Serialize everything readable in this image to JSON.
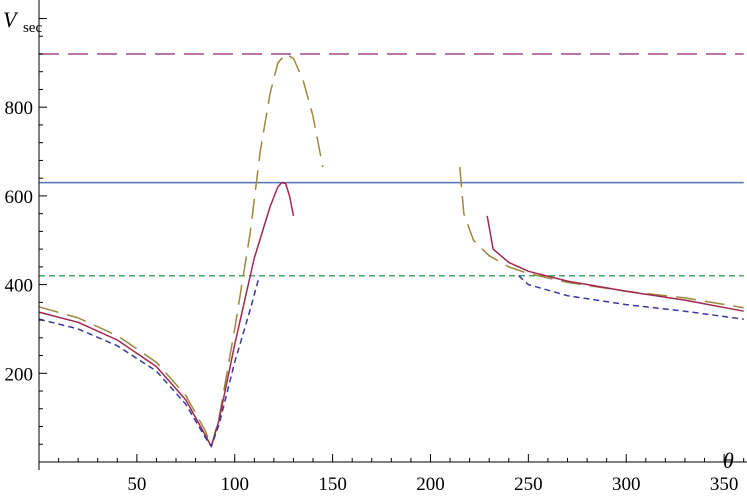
{
  "chart_data": {
    "type": "line",
    "xlabel": "θ",
    "ylabel": {
      "main": "V",
      "sub": "sec"
    },
    "xlim": [
      0,
      362
    ],
    "ylim": [
      0,
      1000
    ],
    "x_ticks": [
      50,
      100,
      150,
      200,
      250,
      300,
      350
    ],
    "y_ticks": [
      200,
      400,
      600,
      800
    ],
    "grid": false,
    "legend": "none",
    "series": [
      {
        "color": "#a0488c",
        "dash": "long-dash",
        "x": [
          0,
          360
        ],
        "y": [
          920,
          920
        ]
      },
      {
        "color": "#4f71b3",
        "dash": "solid",
        "x": [
          0,
          360
        ],
        "y": [
          630,
          630
        ]
      },
      {
        "color": "#46a863",
        "dash": "short-dash",
        "x": [
          0,
          360
        ],
        "y": [
          420,
          420
        ]
      },
      {
        "color": "#9a8a3e",
        "dash": "long-dash",
        "segments": [
          {
            "x": [
              0,
              20,
              40,
              60,
              75,
              85,
              88,
              92,
              100,
              108,
              113,
              118,
              122,
              126,
              130,
              135,
              140,
              145
            ],
            "y": [
              350,
              325,
              285,
              225,
              150,
              70,
              35,
              100,
              300,
              520,
              700,
              830,
              900,
              920,
              910,
              860,
              780,
              665
            ]
          },
          {
            "x": [
              215,
              217,
              222,
              230,
              240,
              250,
              270,
              300,
              330,
              360
            ],
            "y": [
              665,
              560,
              500,
              465,
              440,
              425,
              405,
              385,
              370,
              348
            ]
          }
        ]
      },
      {
        "color": "#a0284c",
        "dash": "solid",
        "segments": [
          {
            "x": [
              0,
              20,
              40,
              60,
              75,
              85,
              88,
              92,
              100,
              110,
              118,
              122,
              124,
              126,
              128,
              130
            ],
            "y": [
              338,
              315,
              275,
              215,
              140,
              60,
              35,
              95,
              265,
              460,
              575,
              620,
              630,
              628,
              600,
              555
            ]
          },
          {
            "x": [
              229,
              232,
              240,
              250,
              270,
              300,
              330,
              360
            ],
            "y": [
              555,
              480,
              450,
              430,
              408,
              385,
              365,
              340
            ]
          }
        ]
      },
      {
        "color": "#3a3a9e",
        "dash": "short-dash",
        "segments": [
          {
            "x": [
              0,
              20,
              40,
              60,
              75,
              85,
              88,
              92,
              100,
              108,
              112
            ],
            "y": [
              322,
              300,
              262,
              205,
              130,
              55,
              35,
              85,
              225,
              345,
              410
            ]
          },
          {
            "x": [
              245,
              250,
              270,
              300,
              330,
              360
            ],
            "y": [
              420,
              400,
              375,
              355,
              340,
              322
            ]
          }
        ]
      }
    ]
  }
}
